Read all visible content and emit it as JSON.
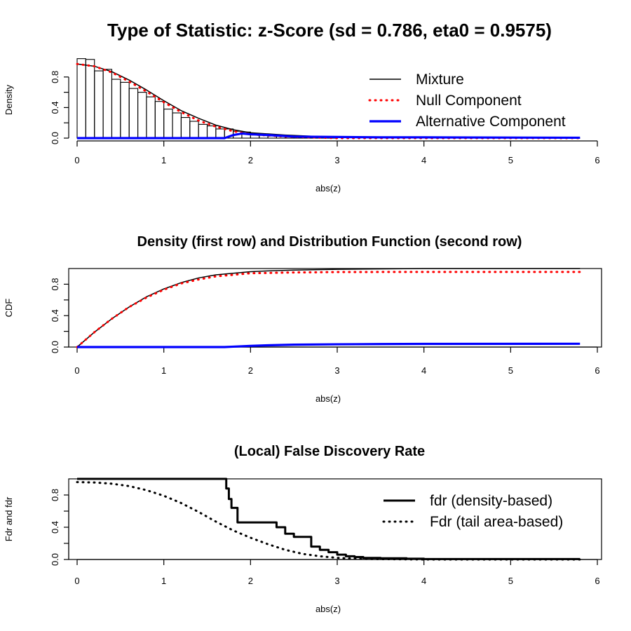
{
  "colors": {
    "mixture": "#000000",
    "null": "#ff0000",
    "alternative": "#0000ff",
    "frame": "#000000",
    "bar_outline": "#000000"
  },
  "chart_data": [
    {
      "type": "bar",
      "title": "Type of Statistic: z-Score  (sd = 0.786, eta0 = 0.9575)",
      "xlabel": "abs(z)",
      "ylabel": "Density",
      "xlim": [
        0,
        6
      ],
      "ylim": [
        0,
        1.0
      ],
      "frame": false,
      "grid": false,
      "xticks": [
        "0",
        "1",
        "2",
        "3",
        "4",
        "5",
        "6"
      ],
      "yticks": [
        "0.0",
        "0.4",
        "0.8"
      ],
      "histogram": {
        "bin_width": 0.1,
        "start": 0,
        "values": [
          1.04,
          1.03,
          0.88,
          0.9,
          0.77,
          0.73,
          0.65,
          0.6,
          0.54,
          0.48,
          0.38,
          0.33,
          0.27,
          0.22,
          0.18,
          0.16,
          0.12,
          0.12,
          0.09,
          0.08,
          0.06,
          0.05,
          0.04,
          0.03,
          0.02,
          0.02,
          0.02,
          0.01,
          0.01,
          0.01
        ]
      },
      "series": [
        {
          "name": "Mixture",
          "style": "solid",
          "x": [
            0,
            0.2,
            0.4,
            0.6,
            0.8,
            1.0,
            1.2,
            1.4,
            1.6,
            1.8,
            2.0,
            2.4,
            3.0,
            5.8
          ],
          "y": [
            0.97,
            0.94,
            0.87,
            0.76,
            0.63,
            0.49,
            0.36,
            0.26,
            0.17,
            0.11,
            0.07,
            0.04,
            0.01,
            0.0
          ]
        },
        {
          "name": "Null Component",
          "style": "dotted",
          "x": [
            0,
            0.2,
            0.4,
            0.6,
            0.8,
            1.0,
            1.2,
            1.4,
            1.6,
            1.8,
            2.0,
            2.4,
            3.0,
            5.8
          ],
          "y": [
            0.97,
            0.94,
            0.86,
            0.74,
            0.61,
            0.47,
            0.34,
            0.23,
            0.15,
            0.09,
            0.05,
            0.02,
            0.0,
            0.0
          ]
        },
        {
          "name": "Alternative Component",
          "style": "thick",
          "x": [
            0,
            1.7,
            1.8,
            1.9,
            2.0,
            2.2,
            2.5,
            3.0,
            3.5,
            4.0,
            5.8
          ],
          "y": [
            0.0,
            0.0,
            0.04,
            0.06,
            0.05,
            0.04,
            0.02,
            0.015,
            0.01,
            0.01,
            0.005
          ]
        }
      ],
      "legend": {
        "placement": "top-right",
        "entries": [
          "Mixture",
          "Null Component",
          "Alternative Component"
        ]
      }
    },
    {
      "type": "line",
      "title": "Density (first row) and Distribution Function (second row)",
      "xlabel": "abs(z)",
      "ylabel": "CDF",
      "xlim": [
        0,
        6
      ],
      "ylim": [
        0,
        1.0
      ],
      "frame": true,
      "grid": false,
      "xticks": [
        "0",
        "1",
        "2",
        "3",
        "4",
        "5",
        "6"
      ],
      "yticks": [
        "0.0",
        "0.4",
        "0.8"
      ],
      "series": [
        {
          "name": "Mixture",
          "style": "solid",
          "x": [
            0,
            0.2,
            0.4,
            0.6,
            0.8,
            1.0,
            1.2,
            1.4,
            1.6,
            1.8,
            2.0,
            2.2,
            2.5,
            3.0,
            4.0,
            5.8
          ],
          "y": [
            0,
            0.19,
            0.36,
            0.51,
            0.64,
            0.74,
            0.82,
            0.88,
            0.92,
            0.94,
            0.96,
            0.97,
            0.98,
            0.99,
            1.0,
            1.0
          ]
        },
        {
          "name": "Null Component",
          "style": "dotted",
          "x": [
            0,
            0.2,
            0.4,
            0.6,
            0.8,
            1.0,
            1.2,
            1.4,
            1.6,
            1.8,
            2.0,
            2.5,
            3.0,
            4.0,
            5.8
          ],
          "y": [
            0,
            0.19,
            0.36,
            0.51,
            0.63,
            0.73,
            0.81,
            0.86,
            0.9,
            0.92,
            0.94,
            0.95,
            0.955,
            0.957,
            0.957
          ]
        },
        {
          "name": "Alternative Component",
          "style": "thick",
          "x": [
            0,
            1.7,
            1.8,
            2.0,
            2.2,
            2.5,
            3.0,
            3.5,
            4.0,
            5.8
          ],
          "y": [
            0,
            0,
            0.005,
            0.015,
            0.022,
            0.03,
            0.035,
            0.038,
            0.04,
            0.042
          ]
        }
      ]
    },
    {
      "type": "line",
      "title": "(Local) False Discovery Rate",
      "xlabel": "abs(z)",
      "ylabel": "Fdr and fdr",
      "xlim": [
        0,
        6
      ],
      "ylim": [
        0,
        1.0
      ],
      "frame": true,
      "grid": false,
      "xticks": [
        "0",
        "1",
        "2",
        "3",
        "4",
        "5",
        "6"
      ],
      "yticks": [
        "0.0",
        "0.4",
        "0.8"
      ],
      "series": [
        {
          "name": "fdr (density-based)",
          "style": "step",
          "x": [
            0,
            1.7,
            1.72,
            1.75,
            1.78,
            1.85,
            2.0,
            2.2,
            2.3,
            2.4,
            2.5,
            2.6,
            2.7,
            2.8,
            2.9,
            3.0,
            3.1,
            3.2,
            3.3,
            3.5,
            3.8,
            4.0,
            5.8
          ],
          "y": [
            1.0,
            1.0,
            0.88,
            0.75,
            0.64,
            0.46,
            0.46,
            0.46,
            0.4,
            0.32,
            0.28,
            0.28,
            0.16,
            0.12,
            0.09,
            0.06,
            0.04,
            0.03,
            0.02,
            0.015,
            0.01,
            0.005,
            0.005
          ]
        },
        {
          "name": "Fdr (tail area-based)",
          "style": "dotted",
          "x": [
            0,
            0.2,
            0.4,
            0.6,
            0.8,
            1.0,
            1.2,
            1.4,
            1.6,
            1.8,
            2.0,
            2.2,
            2.4,
            2.6,
            2.8,
            3.0,
            3.2,
            3.5,
            4.0,
            5.8
          ],
          "y": [
            0.96,
            0.955,
            0.94,
            0.91,
            0.86,
            0.79,
            0.7,
            0.59,
            0.47,
            0.36,
            0.27,
            0.19,
            0.12,
            0.07,
            0.04,
            0.02,
            0.01,
            0.005,
            0.0,
            0.0
          ]
        }
      ],
      "legend": {
        "placement": "top-right",
        "entries": [
          "fdr (density-based)",
          "Fdr (tail area-based)"
        ]
      }
    }
  ]
}
